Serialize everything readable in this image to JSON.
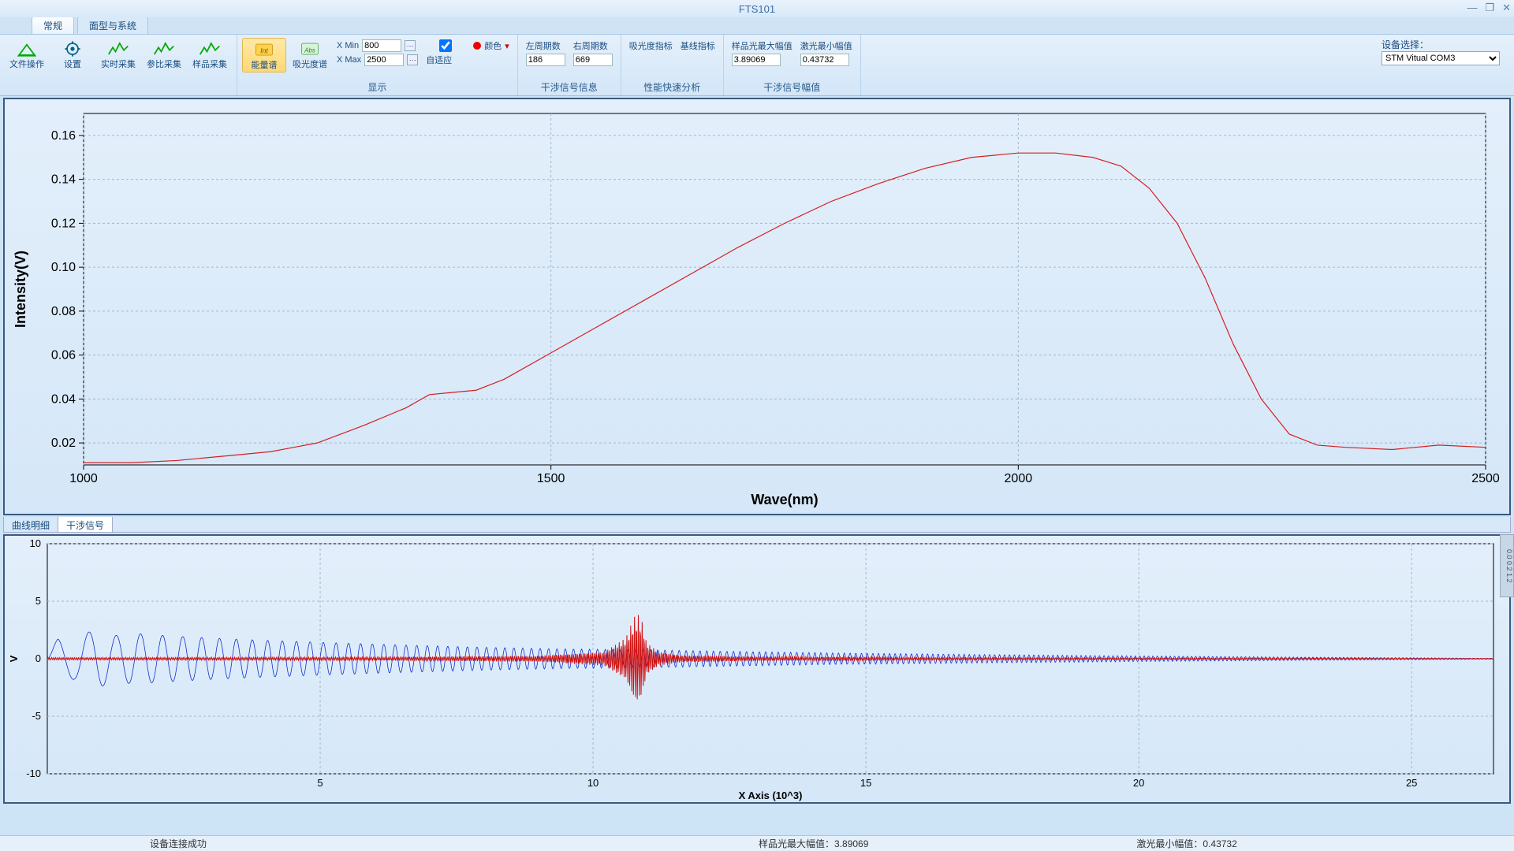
{
  "window": {
    "title": "FTS101"
  },
  "tabs": {
    "normal": "常规",
    "surface": "面型与系统"
  },
  "ribbon": {
    "file": {
      "label": "文件操作"
    },
    "settings": {
      "label": "设置"
    },
    "realtime": {
      "label": "实时采集"
    },
    "ref": {
      "label": "参比采集"
    },
    "sample": {
      "label": "样品采集"
    },
    "energy": {
      "label": "能量谱"
    },
    "absorb": {
      "label": "吸光度谱"
    },
    "xmin_label": "X Min",
    "xmin": "800",
    "xmax_label": "X Max",
    "xmax": "2500",
    "adaptive": "自适应",
    "color": "颜色",
    "display_group": "显示",
    "leftperiod_label": "左周期数",
    "leftperiod": "186",
    "rightperiod_label": "右周期数",
    "rightperiod": "669",
    "interf_group": "干涉信号信息",
    "absorb_idx": "吸光度指标",
    "baseline_idx": "基线指标",
    "perf_group": "性能快速分析",
    "samp_amp_label": "样品光最大幅值",
    "samp_amp": "3.89069",
    "laser_amp_label": "激光最小幅值",
    "laser_amp": "0.43732",
    "amp_group": "干涉信号幅值",
    "device_label": "设备选择：",
    "device_value": "STM Vitual COM3"
  },
  "subtabs": {
    "curve": "曲线明细",
    "interf": "干涉信号"
  },
  "status": {
    "conn": "设备连接成功",
    "samp": "样品光最大幅值：3.89069",
    "laser": "激光最小幅值：0.43732"
  },
  "top_chart": {
    "type": "line",
    "xlabel": "Wave(nm)",
    "ylabel": "Intensity(V)",
    "xlim": [
      1000,
      2500
    ],
    "ylim": [
      0.01,
      0.17
    ],
    "xticks": [
      1000,
      1500,
      2000,
      2500
    ],
    "yticks": [
      0.02,
      0.04,
      0.06,
      0.08,
      0.1,
      0.12,
      0.14,
      0.16
    ],
    "ytick_labels": [
      "0.02",
      "0.04",
      "0.06",
      "0.08",
      "0.10",
      "0.12",
      "0.14",
      "0.16"
    ],
    "line_color": "#d42020",
    "line_width": 1.2,
    "grid_color": "#9fb8d0",
    "background": "#dfecf9",
    "data": [
      [
        1000,
        0.011
      ],
      [
        1050,
        0.011
      ],
      [
        1100,
        0.012
      ],
      [
        1150,
        0.014
      ],
      [
        1200,
        0.016
      ],
      [
        1250,
        0.02
      ],
      [
        1300,
        0.028
      ],
      [
        1345,
        0.036
      ],
      [
        1370,
        0.042
      ],
      [
        1395,
        0.043
      ],
      [
        1420,
        0.044
      ],
      [
        1450,
        0.049
      ],
      [
        1500,
        0.061
      ],
      [
        1550,
        0.073
      ],
      [
        1600,
        0.085
      ],
      [
        1650,
        0.097
      ],
      [
        1700,
        0.109
      ],
      [
        1750,
        0.12
      ],
      [
        1800,
        0.13
      ],
      [
        1850,
        0.138
      ],
      [
        1900,
        0.145
      ],
      [
        1950,
        0.15
      ],
      [
        2000,
        0.152
      ],
      [
        2040,
        0.152
      ],
      [
        2080,
        0.15
      ],
      [
        2110,
        0.146
      ],
      [
        2140,
        0.136
      ],
      [
        2170,
        0.12
      ],
      [
        2200,
        0.095
      ],
      [
        2230,
        0.065
      ],
      [
        2260,
        0.04
      ],
      [
        2290,
        0.024
      ],
      [
        2320,
        0.019
      ],
      [
        2350,
        0.018
      ],
      [
        2400,
        0.017
      ],
      [
        2450,
        0.019
      ],
      [
        2500,
        0.018
      ]
    ]
  },
  "bot_chart": {
    "type": "interferogram",
    "xlabel": "X Axis (10^3)",
    "ylabel": "V",
    "xlim": [
      0,
      26500
    ],
    "ylim": [
      -10,
      10
    ],
    "xticks": [
      5000,
      10000,
      15000,
      20000,
      25000
    ],
    "xtick_labels": [
      "5",
      "10",
      "15",
      "20",
      "25"
    ],
    "yticks": [
      -10,
      -5,
      0,
      5,
      10
    ],
    "grid_color": "#9fb8d0",
    "background": "#dfecf9",
    "blue_color": "#1030d0",
    "blue_width": 0.8,
    "red_color": "#d01010",
    "red_width": 1.0,
    "blue_envelope": [
      [
        0,
        0.2
      ],
      [
        200,
        1.8
      ],
      [
        500,
        1.8
      ],
      [
        900,
        2.6
      ],
      [
        1200,
        2.0
      ],
      [
        1600,
        2.2
      ],
      [
        2200,
        2.0
      ],
      [
        3000,
        1.8
      ],
      [
        4000,
        1.6
      ],
      [
        5200,
        1.4
      ],
      [
        6500,
        1.2
      ],
      [
        8000,
        1.0
      ],
      [
        9500,
        0.85
      ],
      [
        10600,
        0.8
      ],
      [
        11000,
        0.78
      ],
      [
        12500,
        0.65
      ],
      [
        14500,
        0.5
      ],
      [
        17000,
        0.38
      ],
      [
        20000,
        0.25
      ],
      [
        23000,
        0.15
      ],
      [
        25500,
        0.08
      ],
      [
        26200,
        0.05
      ]
    ],
    "red_envelope": [
      [
        0,
        0.1
      ],
      [
        3000,
        0.12
      ],
      [
        6000,
        0.15
      ],
      [
        9000,
        0.25
      ],
      [
        10200,
        0.6
      ],
      [
        10600,
        1.8
      ],
      [
        10750,
        3.6
      ],
      [
        10820,
        3.9
      ],
      [
        10900,
        3.2
      ],
      [
        10980,
        1.4
      ],
      [
        11200,
        0.6
      ],
      [
        11600,
        0.3
      ],
      [
        13000,
        0.18
      ],
      [
        16000,
        0.12
      ],
      [
        20000,
        0.08
      ],
      [
        24000,
        0.05
      ],
      [
        26200,
        0.03
      ]
    ],
    "blue_freq_start": 0.009,
    "blue_freq_end": 0.1,
    "red_freq": 0.18
  }
}
